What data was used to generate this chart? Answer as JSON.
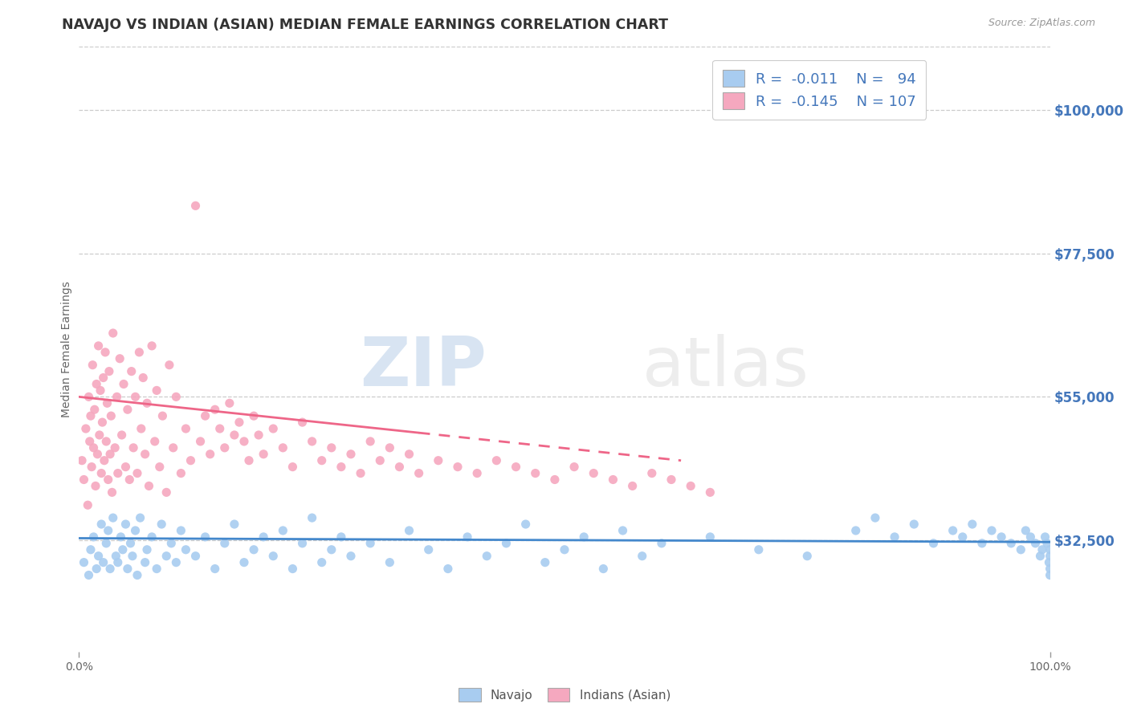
{
  "title": "NAVAJO VS INDIAN (ASIAN) MEDIAN FEMALE EARNINGS CORRELATION CHART",
  "source_text": "Source: ZipAtlas.com",
  "ylabel": "Median Female Earnings",
  "xlim": [
    0.0,
    100.0
  ],
  "ylim": [
    15000,
    110000
  ],
  "yticks": [
    32500,
    55000,
    77500,
    100000
  ],
  "ytick_labels": [
    "$32,500",
    "$55,000",
    "$77,500",
    "$100,000"
  ],
  "xtick_labels": [
    "0.0%",
    "100.0%"
  ],
  "navajo_R": "-0.011",
  "navajo_N": "94",
  "indian_R": "-0.145",
  "indian_N": "107",
  "navajo_color": "#a8ccf0",
  "indian_color": "#f5a8bf",
  "navajo_line_color": "#4488cc",
  "indian_line_color": "#ee6688",
  "bg_color": "#ffffff",
  "grid_color": "#cccccc",
  "watermark_zip": "ZIP",
  "watermark_atlas": "atlas",
  "legend_label_navajo": "Navajo",
  "legend_label_indian": "Indians (Asian)",
  "title_color": "#333333",
  "axis_label_color": "#4477bb",
  "navajo_scatter_x": [
    0.5,
    1.0,
    1.2,
    1.5,
    1.8,
    2.0,
    2.3,
    2.5,
    2.8,
    3.0,
    3.2,
    3.5,
    3.8,
    4.0,
    4.3,
    4.5,
    4.8,
    5.0,
    5.3,
    5.5,
    5.8,
    6.0,
    6.3,
    6.8,
    7.0,
    7.5,
    8.0,
    8.5,
    9.0,
    9.5,
    10.0,
    10.5,
    11.0,
    12.0,
    13.0,
    14.0,
    15.0,
    16.0,
    17.0,
    18.0,
    19.0,
    20.0,
    21.0,
    22.0,
    23.0,
    24.0,
    25.0,
    26.0,
    27.0,
    28.0,
    30.0,
    32.0,
    34.0,
    36.0,
    38.0,
    40.0,
    42.0,
    44.0,
    46.0,
    48.0,
    50.0,
    52.0,
    54.0,
    56.0,
    58.0,
    60.0,
    65.0,
    70.0,
    75.0,
    80.0,
    82.0,
    84.0,
    86.0,
    88.0,
    90.0,
    91.0,
    92.0,
    93.0,
    94.0,
    95.0,
    96.0,
    97.0,
    97.5,
    98.0,
    98.5,
    99.0,
    99.2,
    99.5,
    99.7,
    99.9,
    100.0,
    100.0,
    100.0,
    100.0
  ],
  "navajo_scatter_y": [
    29000,
    27000,
    31000,
    33000,
    28000,
    30000,
    35000,
    29000,
    32000,
    34000,
    28000,
    36000,
    30000,
    29000,
    33000,
    31000,
    35000,
    28000,
    32000,
    30000,
    34000,
    27000,
    36000,
    29000,
    31000,
    33000,
    28000,
    35000,
    30000,
    32000,
    29000,
    34000,
    31000,
    30000,
    33000,
    28000,
    32000,
    35000,
    29000,
    31000,
    33000,
    30000,
    34000,
    28000,
    32000,
    36000,
    29000,
    31000,
    33000,
    30000,
    32000,
    29000,
    34000,
    31000,
    28000,
    33000,
    30000,
    32000,
    35000,
    29000,
    31000,
    33000,
    28000,
    34000,
    30000,
    32000,
    33000,
    31000,
    30000,
    34000,
    36000,
    33000,
    35000,
    32000,
    34000,
    33000,
    35000,
    32000,
    34000,
    33000,
    32000,
    31000,
    34000,
    33000,
    32000,
    30000,
    31000,
    33000,
    32000,
    29000,
    31000,
    30000,
    28000,
    27000
  ],
  "indian_scatter_x": [
    0.3,
    0.5,
    0.7,
    0.9,
    1.0,
    1.1,
    1.2,
    1.3,
    1.4,
    1.5,
    1.6,
    1.7,
    1.8,
    1.9,
    2.0,
    2.1,
    2.2,
    2.3,
    2.4,
    2.5,
    2.6,
    2.7,
    2.8,
    2.9,
    3.0,
    3.1,
    3.2,
    3.3,
    3.4,
    3.5,
    3.7,
    3.9,
    4.0,
    4.2,
    4.4,
    4.6,
    4.8,
    5.0,
    5.2,
    5.4,
    5.6,
    5.8,
    6.0,
    6.2,
    6.4,
    6.6,
    6.8,
    7.0,
    7.2,
    7.5,
    7.8,
    8.0,
    8.3,
    8.6,
    9.0,
    9.3,
    9.7,
    10.0,
    10.5,
    11.0,
    11.5,
    12.0,
    12.5,
    13.0,
    13.5,
    14.0,
    14.5,
    15.0,
    15.5,
    16.0,
    16.5,
    17.0,
    17.5,
    18.0,
    18.5,
    19.0,
    20.0,
    21.0,
    22.0,
    23.0,
    24.0,
    25.0,
    26.0,
    27.0,
    28.0,
    29.0,
    30.0,
    31.0,
    32.0,
    33.0,
    34.0,
    35.0,
    37.0,
    39.0,
    41.0,
    43.0,
    45.0,
    47.0,
    49.0,
    51.0,
    53.0,
    55.0,
    57.0,
    59.0,
    61.0,
    63.0,
    65.0
  ],
  "indian_scatter_y": [
    45000,
    42000,
    50000,
    38000,
    55000,
    48000,
    52000,
    44000,
    60000,
    47000,
    53000,
    41000,
    57000,
    46000,
    63000,
    49000,
    56000,
    43000,
    51000,
    58000,
    45000,
    62000,
    48000,
    54000,
    42000,
    59000,
    46000,
    52000,
    40000,
    65000,
    47000,
    55000,
    43000,
    61000,
    49000,
    57000,
    44000,
    53000,
    42000,
    59000,
    47000,
    55000,
    43000,
    62000,
    50000,
    58000,
    46000,
    54000,
    41000,
    63000,
    48000,
    56000,
    44000,
    52000,
    40000,
    60000,
    47000,
    55000,
    43000,
    50000,
    45000,
    85000,
    48000,
    52000,
    46000,
    53000,
    50000,
    47000,
    54000,
    49000,
    51000,
    48000,
    45000,
    52000,
    49000,
    46000,
    50000,
    47000,
    44000,
    51000,
    48000,
    45000,
    47000,
    44000,
    46000,
    43000,
    48000,
    45000,
    47000,
    44000,
    46000,
    43000,
    45000,
    44000,
    43000,
    45000,
    44000,
    43000,
    42000,
    44000,
    43000,
    42000,
    41000,
    43000,
    42000,
    41000,
    40000
  ]
}
